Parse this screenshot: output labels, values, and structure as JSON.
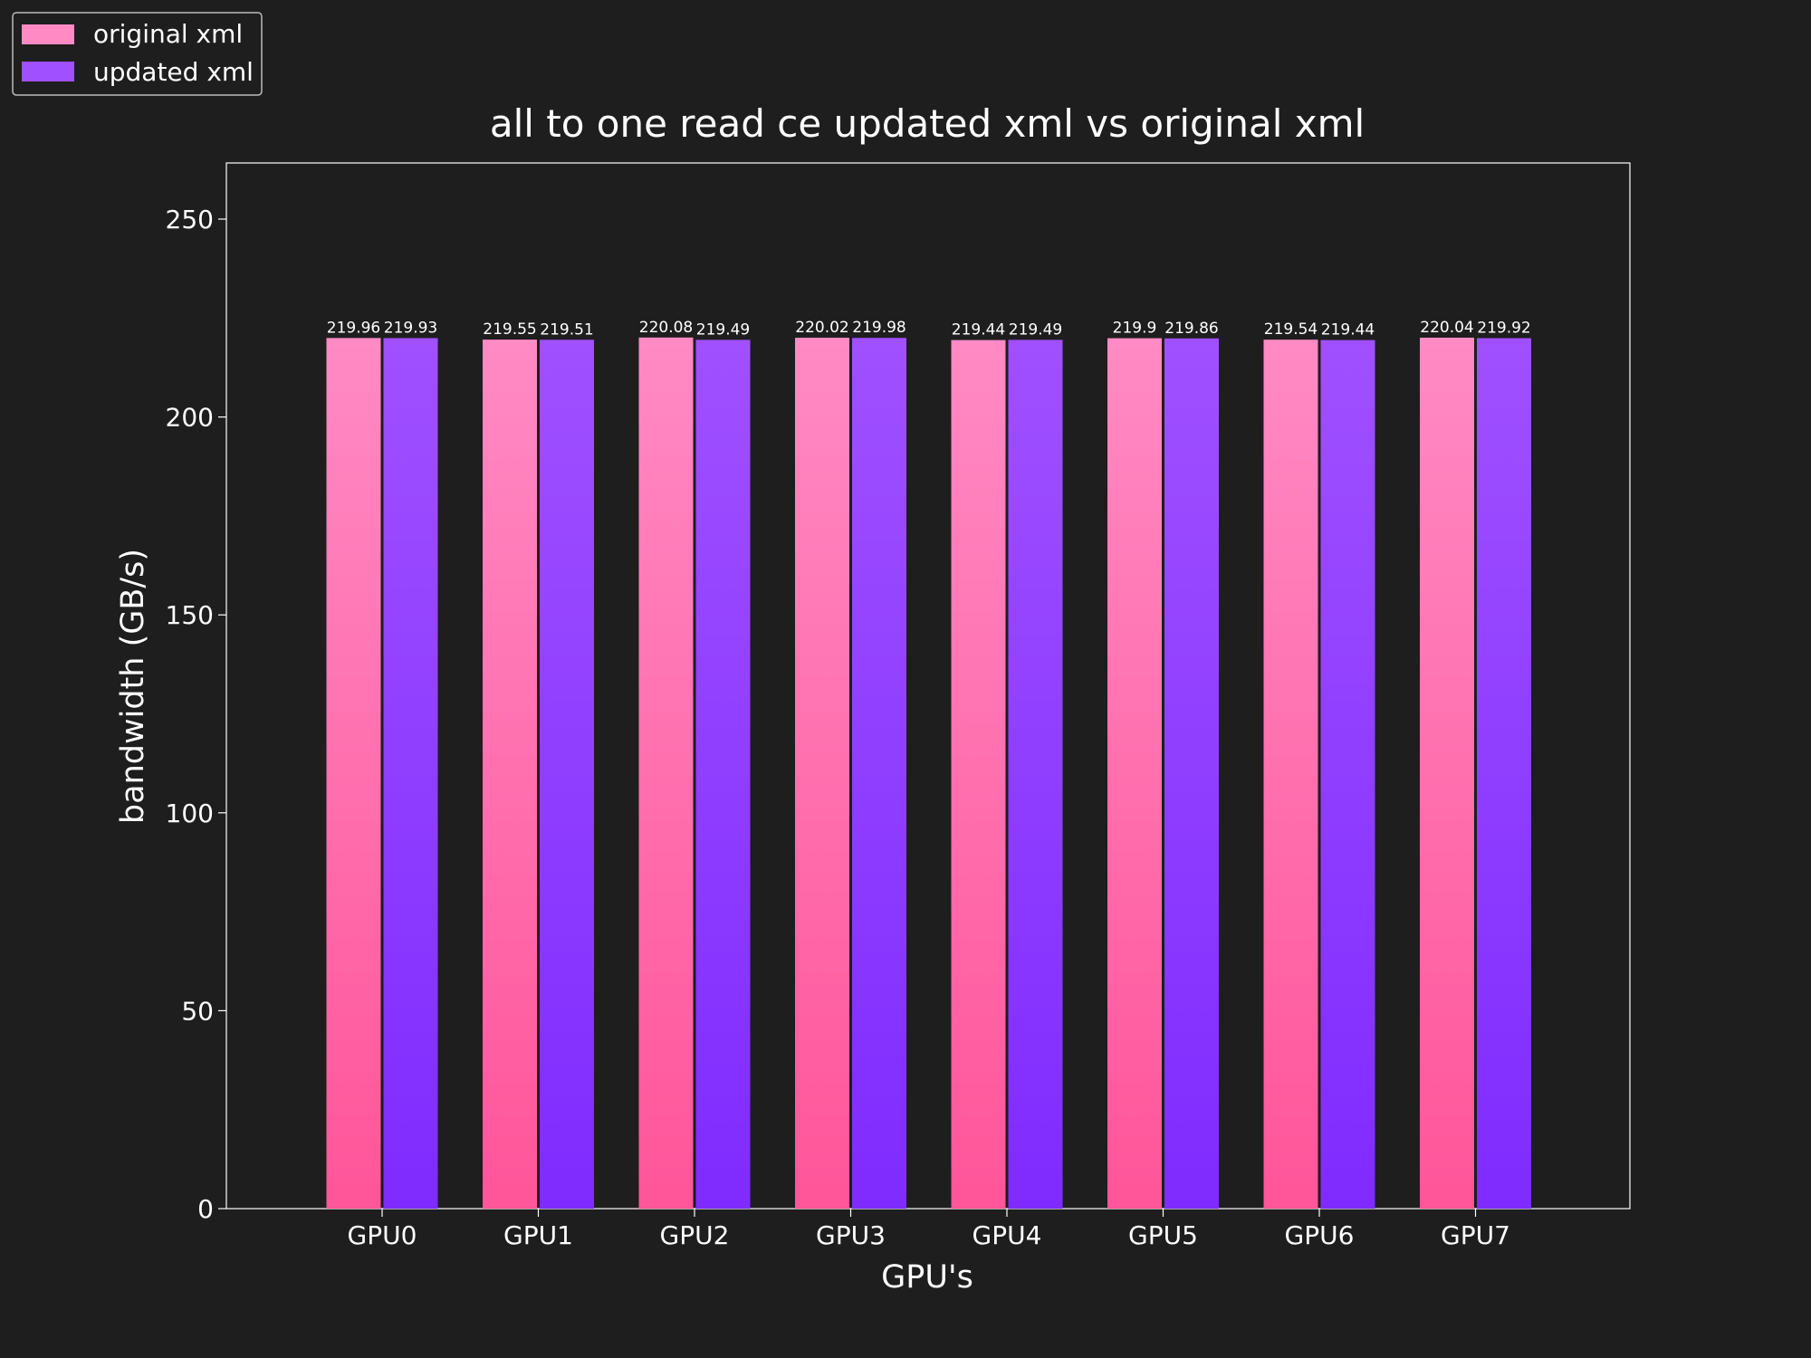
{
  "chart_data": {
    "type": "bar",
    "title": "all to one read ce updated xml vs original xml",
    "xlabel": "GPU's",
    "ylabel": "bandwidth (GB/s)",
    "categories": [
      "GPU0",
      "GPU1",
      "GPU2",
      "GPU3",
      "GPU4",
      "GPU5",
      "GPU6",
      "GPU7"
    ],
    "series": [
      {
        "name": "original xml",
        "values": [
          219.96,
          219.55,
          220.08,
          220.02,
          219.44,
          219.9,
          219.54,
          220.04
        ],
        "labels": [
          "219.96",
          "219.55",
          "220.08",
          "220.02",
          "219.44",
          "219.9",
          "219.54",
          "220.04"
        ],
        "color_top": "#ff8ac4",
        "color_bottom": "#ff5599"
      },
      {
        "name": "updated xml",
        "values": [
          219.93,
          219.51,
          219.49,
          219.98,
          219.49,
          219.86,
          219.44,
          219.92
        ],
        "labels": [
          "219.93",
          "219.51",
          "219.49",
          "219.98",
          "219.49",
          "219.86",
          "219.44",
          "219.92"
        ],
        "color_top": "#a050ff",
        "color_bottom": "#7f2bff"
      }
    ],
    "ylim": [
      0,
      264.4
    ],
    "yticks": [
      0,
      50,
      100,
      150,
      200,
      250
    ],
    "ytick_labels": [
      "0",
      "50",
      "100",
      "150",
      "200",
      "250"
    ],
    "grid": false,
    "legend_position": "top-left",
    "background": "#1e1e1e",
    "text_color": "#ffffff"
  }
}
